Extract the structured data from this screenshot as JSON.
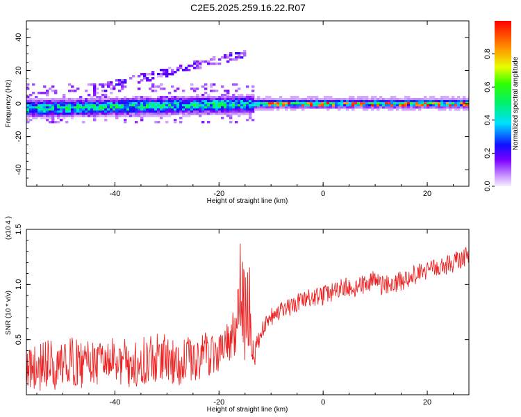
{
  "chart_data": [
    {
      "type": "heatmap",
      "title": "C2E5.2025.259.16.22.R07",
      "xlabel": "Height of straight line (km)",
      "ylabel": "Frequency (Hz)",
      "xlim": [
        -57,
        28
      ],
      "ylim": [
        -50,
        50
      ],
      "xticks": [
        -40,
        -20,
        0,
        20
      ],
      "yticks": [
        -40,
        -20,
        0,
        20,
        40
      ],
      "colorbar": {
        "label": "Normalized spectral amplitude",
        "range": [
          0,
          1
        ],
        "ticks": [
          0.0,
          0.2,
          0.4,
          0.6,
          0.8
        ],
        "colormap": "rainbow"
      },
      "features": [
        {
          "name": "main band",
          "x_from": -57,
          "x_to": 28,
          "freq_center": 0,
          "freq_halfwidth": 4,
          "peak_amplitude": 1.0
        },
        {
          "name": "low-height scatter",
          "x_from": -57,
          "x_to": -13,
          "freq_from": -12,
          "freq_to": 12
        },
        {
          "name": "upper branch",
          "x_from": -42,
          "x_to": -16,
          "freq_from": 10,
          "freq_to": 30
        }
      ]
    },
    {
      "type": "line",
      "title": "",
      "xlabel": "Height of straight line (km)",
      "ylabel": "SNR (10 * v/v)",
      "y_multiplier": "(x10 4 )",
      "xlim": [
        -57,
        28
      ],
      "ylim": [
        0,
        1.5
      ],
      "xticks": [
        -40,
        -20,
        0,
        20
      ],
      "yticks": [
        0.5,
        1.0,
        1.5
      ],
      "ytick_labels": [
        "0.5",
        "1.0",
        "1.5"
      ],
      "series": [
        {
          "name": "SNR",
          "color": "#ee2222",
          "x": [
            -57,
            -55,
            -53,
            -51,
            -49,
            -47,
            -45,
            -43,
            -41,
            -39,
            -37,
            -35,
            -33,
            -31,
            -29,
            -27,
            -25,
            -23,
            -21,
            -19,
            -17,
            -16,
            -15,
            -14,
            -13,
            -12,
            -11,
            -10,
            -8,
            -6,
            -4,
            -2,
            0,
            2,
            4,
            6,
            8,
            10,
            11,
            12,
            14,
            16,
            18,
            20,
            22,
            24,
            26,
            28
          ],
          "values": [
            0.3,
            0.22,
            0.28,
            0.25,
            0.32,
            0.27,
            0.3,
            0.26,
            0.29,
            0.31,
            0.27,
            0.3,
            0.33,
            0.35,
            0.28,
            0.32,
            0.3,
            0.36,
            0.38,
            0.42,
            0.55,
            0.85,
            0.5,
            0.62,
            0.4,
            0.55,
            0.62,
            0.7,
            0.75,
            0.8,
            0.85,
            0.88,
            0.9,
            0.93,
            0.98,
            0.96,
            1.0,
            1.05,
            0.98,
            1.0,
            1.02,
            1.05,
            1.1,
            1.12,
            1.15,
            1.18,
            1.22,
            1.28
          ]
        }
      ]
    }
  ]
}
